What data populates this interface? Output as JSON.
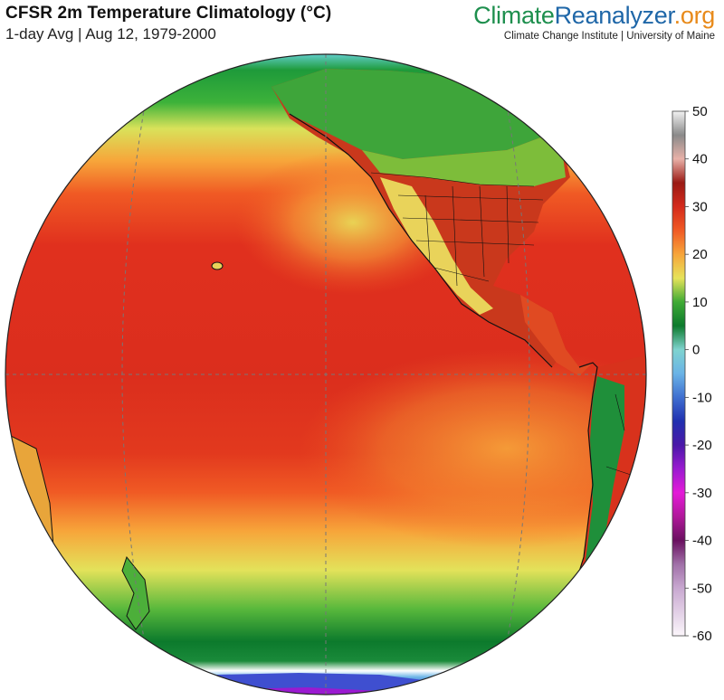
{
  "header": {
    "title": "CFSR 2m Temperature Climatology (°C)",
    "subtitle": "1-day Avg | Aug 12, 1979-2000"
  },
  "brand": {
    "climate": "Climate",
    "reanalyzer": "Reanalyzer",
    "org": ".org",
    "tagline": "Climate Change Institute | University of Maine"
  },
  "colorbar": {
    "ticks": [
      50,
      40,
      30,
      20,
      10,
      0,
      -10,
      -20,
      -30,
      -40,
      -50,
      -60
    ],
    "stops": [
      {
        "value": 50,
        "color": "#f2f2f2"
      },
      {
        "value": 45,
        "color": "#8a8a8a"
      },
      {
        "value": 40,
        "color": "#e8b1a8"
      },
      {
        "value": 35,
        "color": "#9a1a14"
      },
      {
        "value": 30,
        "color": "#d42a1c"
      },
      {
        "value": 25,
        "color": "#f05a24"
      },
      {
        "value": 20,
        "color": "#f7a53a"
      },
      {
        "value": 15,
        "color": "#e6e35a"
      },
      {
        "value": 10,
        "color": "#3faa35"
      },
      {
        "value": 5,
        "color": "#0c7a2c"
      },
      {
        "value": 0,
        "color": "#7fd3cf"
      },
      {
        "value": -5,
        "color": "#6ab3e6"
      },
      {
        "value": -10,
        "color": "#3f6fd0"
      },
      {
        "value": -15,
        "color": "#2030b0"
      },
      {
        "value": -20,
        "color": "#4a18a8"
      },
      {
        "value": -25,
        "color": "#9a1ad0"
      },
      {
        "value": -30,
        "color": "#e41ad8"
      },
      {
        "value": -35,
        "color": "#b0189a"
      },
      {
        "value": -40,
        "color": "#6a1060"
      },
      {
        "value": -45,
        "color": "#a070a8"
      },
      {
        "value": -50,
        "color": "#c8a8d0"
      },
      {
        "value": -60,
        "color": "#fbf6fb"
      }
    ]
  }
}
